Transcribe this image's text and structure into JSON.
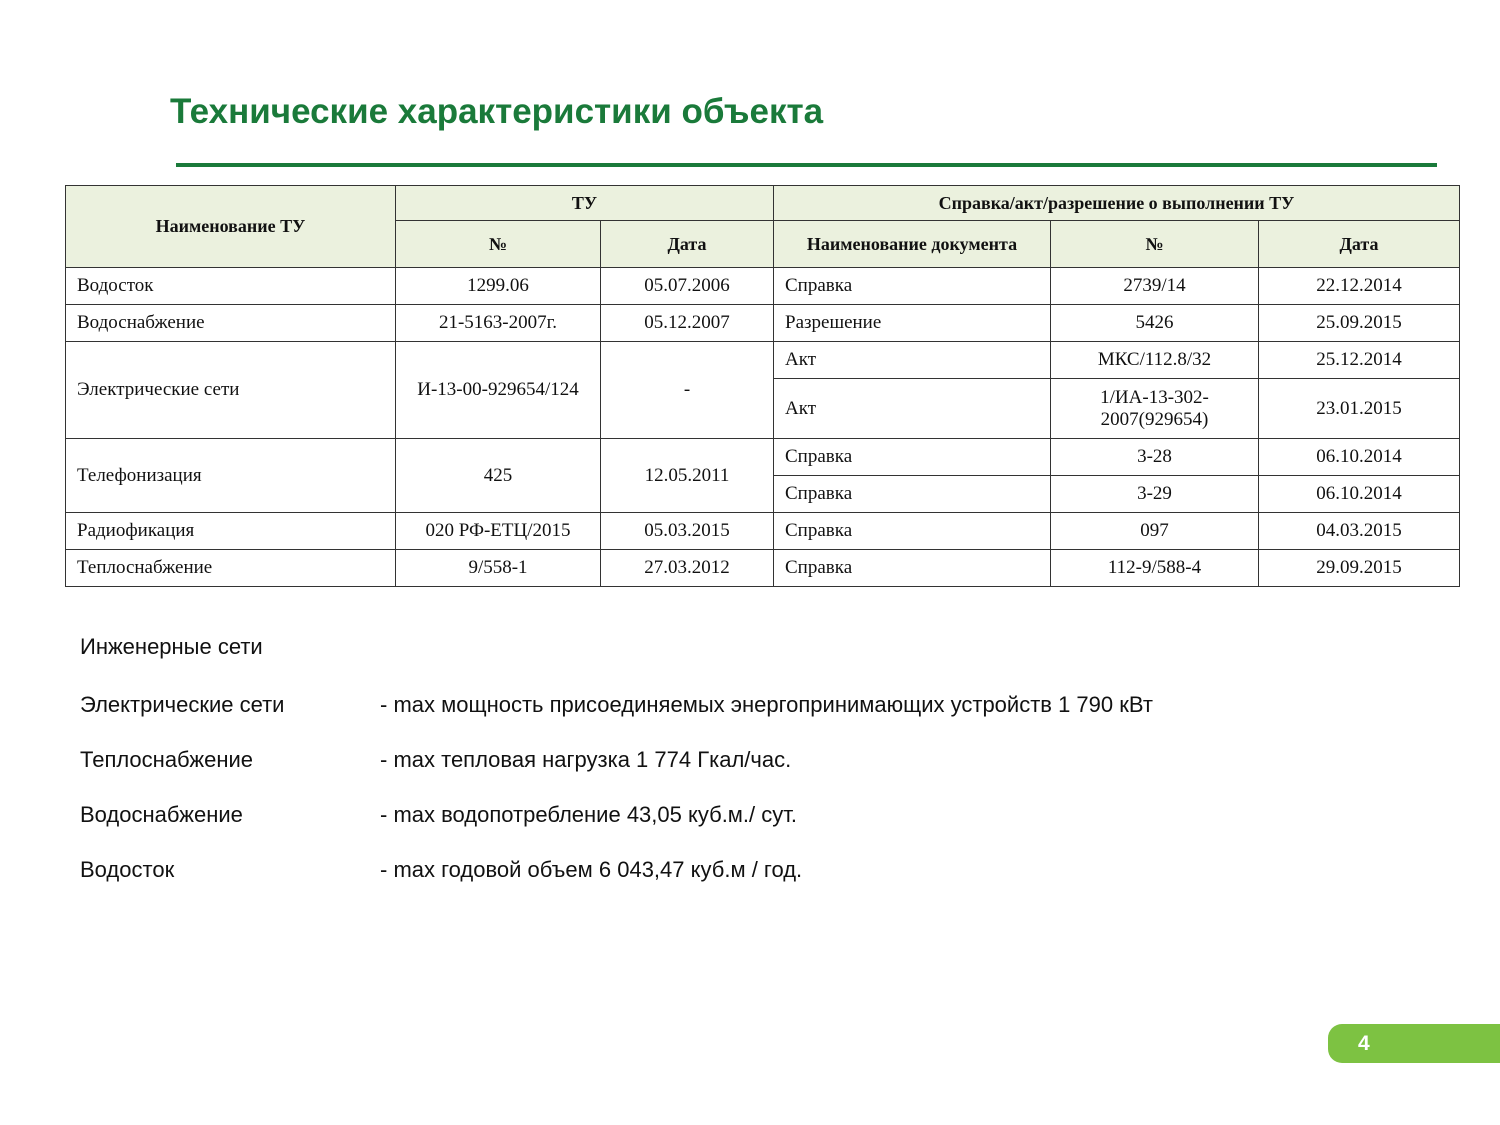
{
  "title": "Технические характеристики объекта",
  "table": {
    "headers": {
      "name": "Наименование ТУ",
      "tu": "ТУ",
      "tu_no": "№",
      "tu_date": "Дата",
      "doc": "Справка/акт/разрешение о выполнении ТУ",
      "doc_name": "Наименование документа",
      "doc_no": "№",
      "doc_date": "Дата"
    },
    "rows": [
      {
        "name": "Водосток",
        "tu_no": "1299.06",
        "tu_date": "05.07.2006",
        "docs": [
          {
            "name": "Справка",
            "no": "2739/14",
            "date": "22.12.2014"
          }
        ]
      },
      {
        "name": "Водоснабжение",
        "tu_no": "21-5163-2007г.",
        "tu_date": "05.12.2007",
        "docs": [
          {
            "name": "Разрешение",
            "no": "5426",
            "date": "25.09.2015"
          }
        ]
      },
      {
        "name": "Электрические сети",
        "tu_no": "И-13-00-929654/124",
        "tu_date": "-",
        "docs": [
          {
            "name": "Акт",
            "no": "МКС/112.8/32",
            "date": "25.12.2014"
          },
          {
            "name": "Акт",
            "no": "1/ИА-13-302-2007(929654)",
            "date": "23.01.2015"
          }
        ]
      },
      {
        "name": "Телефонизация",
        "tu_no": "425",
        "tu_date": "12.05.2011",
        "docs": [
          {
            "name": "Справка",
            "no": "3-28",
            "date": "06.10.2014"
          },
          {
            "name": "Справка",
            "no": "3-29",
            "date": "06.10.2014"
          }
        ]
      },
      {
        "name": "Радиофикация",
        "tu_no": "020 РФ-ЕТЦ/2015",
        "tu_date": "05.03.2015",
        "docs": [
          {
            "name": "Справка",
            "no": "097",
            "date": "04.03.2015"
          }
        ]
      },
      {
        "name": "Теплоснабжение",
        "tu_no": "9/558-1",
        "tu_date": "27.03.2012",
        "docs": [
          {
            "name": "Справка",
            "no": "112-9/588-4",
            "date": "29.09.2015"
          }
        ]
      }
    ]
  },
  "networks": {
    "heading": "Инженерные сети",
    "items": [
      {
        "label": "Электрические сети",
        "value": "- max мощность присоединяемых энергопринимающих устройств 1 790 кВт"
      },
      {
        "label": "Теплоснабжение",
        "value": "- max тепловая нагрузка 1 774 Гкал/час."
      },
      {
        "label": "Водоснабжение",
        "value": "- max водопотребление 43,05 куб.м./ сут."
      },
      {
        "label": "Водосток",
        "value": "- max годовой объем 6 043,47 куб.м / год."
      }
    ]
  },
  "page_number": "4",
  "colors": {
    "title": "#1a7a3a",
    "header_bg": "#ebf1de",
    "page_badge": "#7dc242"
  }
}
